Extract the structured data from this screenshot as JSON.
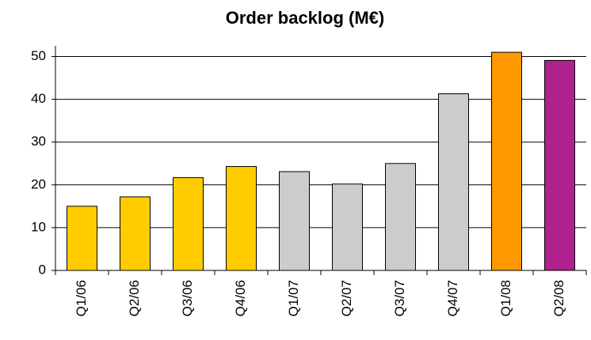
{
  "chart_data": {
    "type": "bar",
    "title": "Order backlog (M€)",
    "categories": [
      "Q1/06",
      "Q2/06",
      "Q3/06",
      "Q4/06",
      "Q1/07",
      "Q2/07",
      "Q3/07",
      "Q4/07",
      "Q1/08",
      "Q2/08"
    ],
    "values": [
      15,
      17.2,
      21.7,
      24.3,
      23.1,
      20.2,
      25,
      41.3,
      51,
      49.1
    ],
    "colors": [
      "#ffcc00",
      "#ffcc00",
      "#ffcc00",
      "#ffcc00",
      "#cccccc",
      "#cccccc",
      "#cccccc",
      "#cccccc",
      "#ff9900",
      "#b0208f"
    ],
    "ylim": [
      0,
      52.5
    ],
    "yticks": [
      0,
      10,
      20,
      30,
      40,
      50
    ],
    "grid": true
  }
}
